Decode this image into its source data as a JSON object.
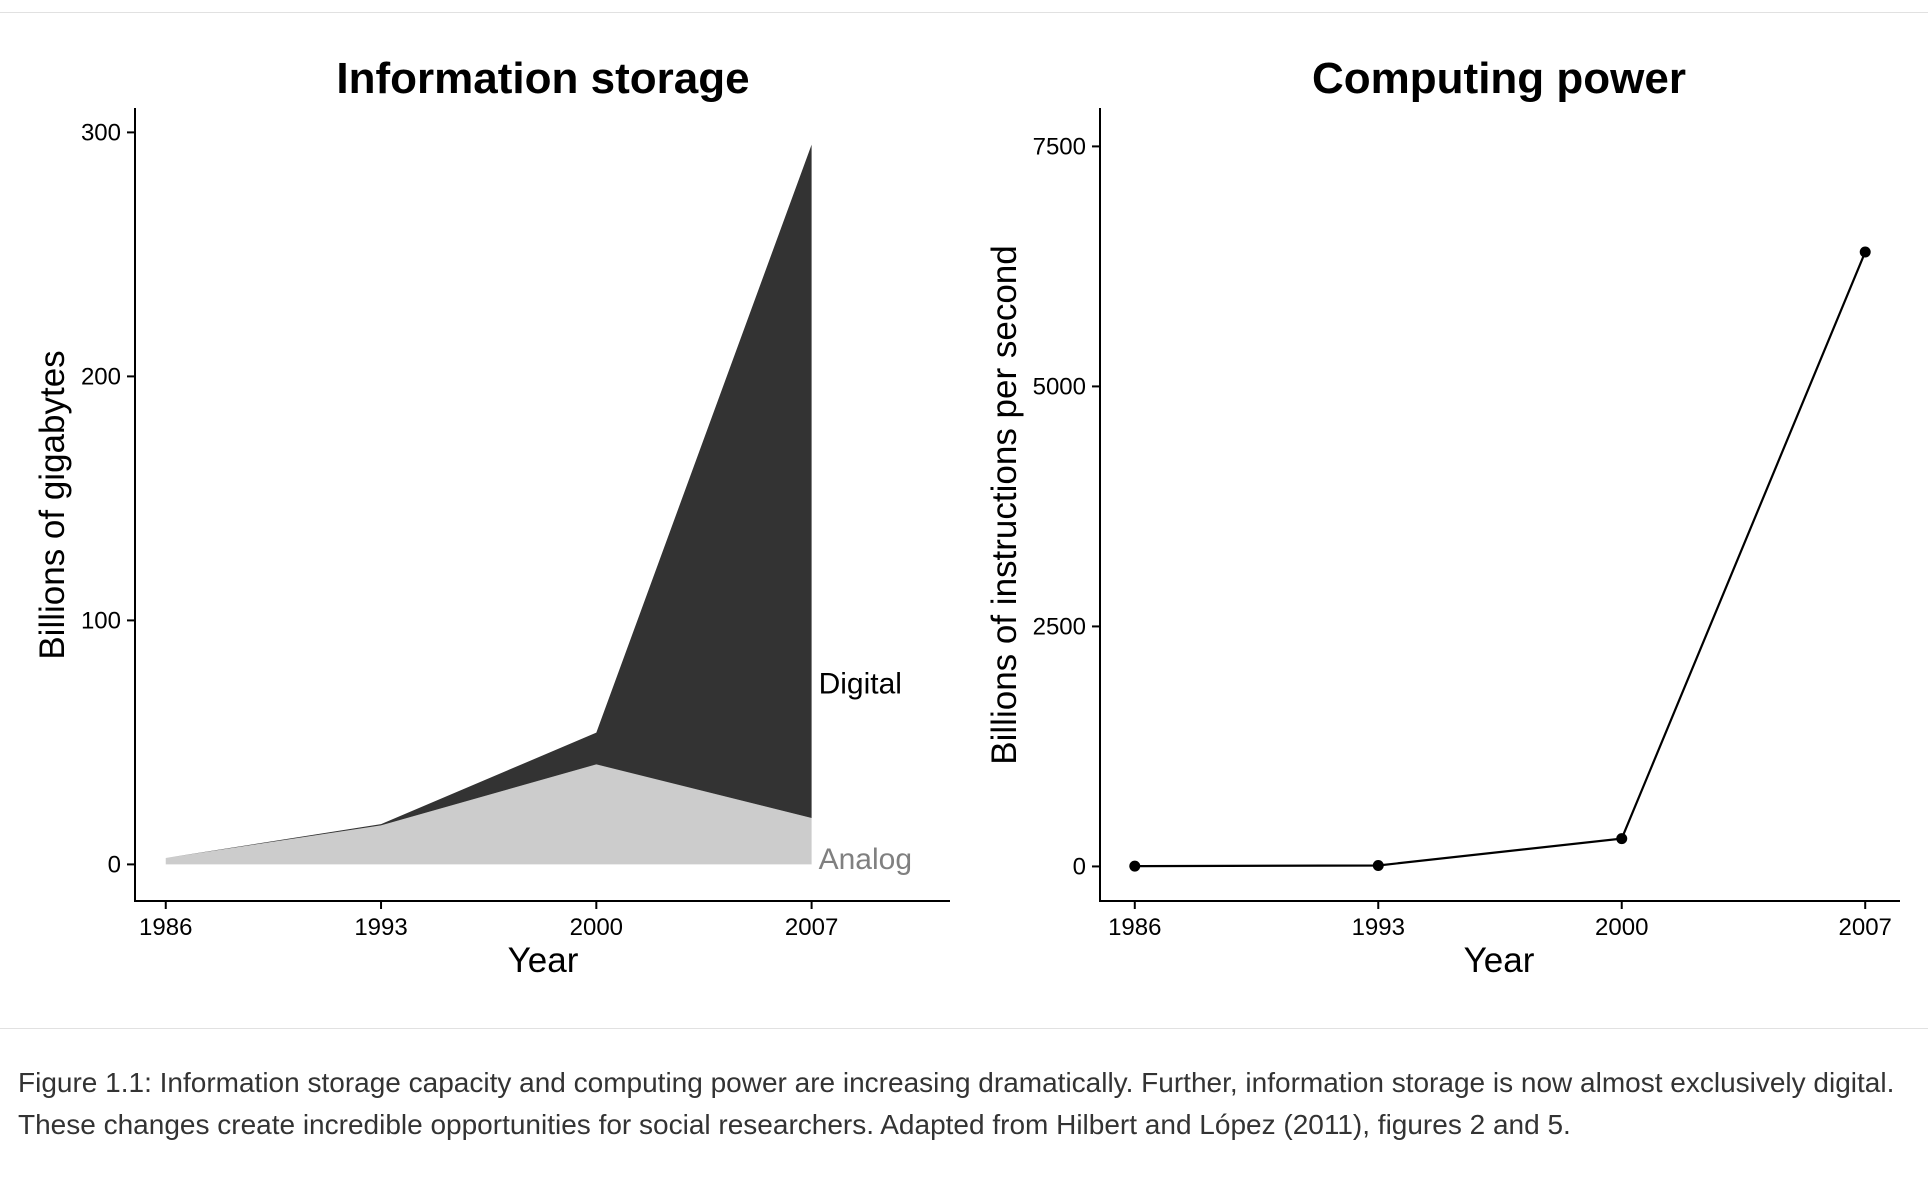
{
  "chart_data": [
    {
      "type": "area",
      "title": "Information storage",
      "xlabel": "Year",
      "ylabel": "Billions of gigabytes",
      "x": [
        1986,
        1993,
        2000,
        2007
      ],
      "xticks": [
        "1986",
        "1993",
        "2000",
        "2007"
      ],
      "xlim": [
        1985,
        2011.5
      ],
      "yticks": [
        "0",
        "100",
        "200",
        "300"
      ],
      "ylim": [
        -15,
        310
      ],
      "stacked": true,
      "grid": false,
      "series": [
        {
          "name": "Analog",
          "values": [
            2.6,
            16,
            41,
            19
          ],
          "color": "#cccccc",
          "label_color": "#808080"
        },
        {
          "name": "Digital",
          "values": [
            0.02,
            0.5,
            13,
            276
          ],
          "color": "#333333",
          "label_color": "#000000"
        }
      ]
    },
    {
      "type": "line",
      "title": "Computing power",
      "xlabel": "Year",
      "ylabel": "Billions of instructions per second",
      "x": [
        1986,
        1993,
        2000,
        2007
      ],
      "xticks": [
        "1986",
        "1993",
        "2000",
        "2007"
      ],
      "xlim": [
        1985,
        2008
      ],
      "yticks": [
        "0",
        "2500",
        "5000",
        "7500"
      ],
      "ylim": [
        -360,
        7900
      ],
      "grid": false,
      "series": [
        {
          "values": [
            3.3,
            10,
            290,
            6400
          ],
          "color": "#000000"
        }
      ]
    }
  ],
  "caption": "Figure 1.1: Information storage capacity and computing power are increasing dramatically. Further, information storage is now almost exclusively digital. These changes create incredible opportunities for social researchers. Adapted from Hilbert and López (2011), figures 2 and 5."
}
